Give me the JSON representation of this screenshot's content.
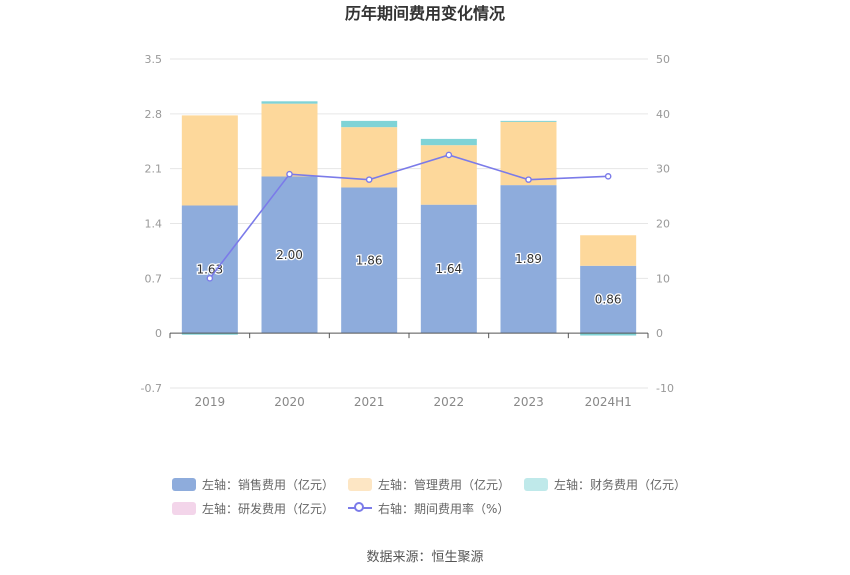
{
  "chart_data": {
    "type": "bar",
    "title": "历年期间费用变化情况",
    "categories": [
      "2019",
      "2020",
      "2021",
      "2022",
      "2023",
      "2024H1"
    ],
    "left_axis": {
      "ylim": [
        -0.7,
        3.5
      ],
      "ticks": [
        "3.5",
        "2.8",
        "2.1",
        "1.4",
        "0.7",
        "0",
        "-0.7"
      ]
    },
    "right_axis": {
      "ylim": [
        -10,
        50
      ],
      "ticks": [
        "50",
        "40",
        "30",
        "20",
        "10",
        "0",
        "-10"
      ]
    },
    "grid": true,
    "legend_position": "bottom",
    "series": [
      {
        "name": "左轴：销售费用（亿元）",
        "axis": "left",
        "kind": "stacked-bar",
        "color": "#8eacdc",
        "values": [
          1.63,
          2.0,
          1.86,
          1.64,
          1.89,
          0.86
        ],
        "labels": [
          "1.63",
          "2.00",
          "1.86",
          "1.64",
          "1.89",
          "0.86"
        ]
      },
      {
        "name": "左轴：管理费用（亿元）",
        "axis": "left",
        "kind": "stacked-bar",
        "color": "#fdd89b",
        "values": [
          1.15,
          0.93,
          0.77,
          0.76,
          0.81,
          0.39
        ]
      },
      {
        "name": "左轴：财务费用（亿元）",
        "axis": "left",
        "kind": "stacked-bar",
        "color": "#7fd3d6",
        "values": [
          -0.02,
          0.03,
          0.08,
          0.08,
          0.01,
          -0.03
        ]
      },
      {
        "name": "左轴：研发费用（亿元）",
        "axis": "left",
        "kind": "stacked-bar",
        "color": "#f3d5ea",
        "values": [
          0,
          0,
          0,
          0,
          0,
          0
        ]
      },
      {
        "name": "右轴：期间费用率（%）",
        "axis": "right",
        "kind": "line",
        "color": "#7b7be9",
        "values": [
          10,
          29,
          28,
          32.5,
          28,
          28.6
        ]
      }
    ]
  },
  "source": "数据来源：恒生聚源"
}
